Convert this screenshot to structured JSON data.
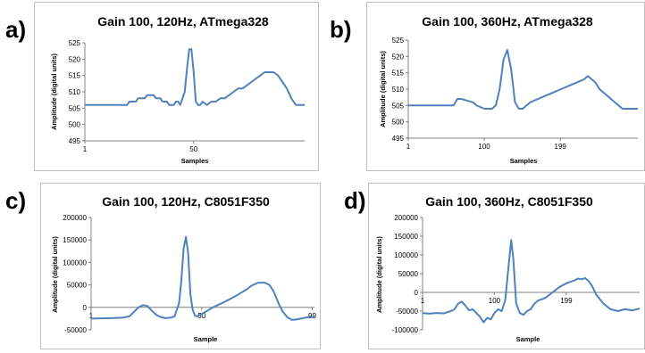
{
  "panels": [
    {
      "letter": "a)",
      "chart_data": {
        "type": "line",
        "title": "Gain 100, 120Hz, ATmega328",
        "xlabel": "Samples",
        "ylabel": "Amplitude (digital units)",
        "xlim": [
          1,
          100
        ],
        "ylim": [
          495,
          525
        ],
        "yticks": [
          495,
          500,
          505,
          510,
          515,
          520,
          525
        ],
        "xtick_labels": [
          {
            "x": 1,
            "label": "1"
          },
          {
            "x": 50,
            "label": "50"
          }
        ],
        "grid": false,
        "series": [
          {
            "color": "#4f81bd",
            "x": [
              1,
              20,
              21,
              24,
              25,
              28,
              29,
              32,
              33,
              35,
              36,
              38,
              39,
              41,
              42,
              43,
              44,
              45,
              46,
              47,
              48,
              49,
              50,
              51,
              52,
              53,
              54,
              56,
              58,
              60,
              62,
              64,
              66,
              68,
              70,
              72,
              74,
              76,
              78,
              80,
              82,
              84,
              86,
              88,
              90,
              92,
              94,
              96,
              98,
              100
            ],
            "y": [
              506,
              506,
              507,
              507,
              508,
              508,
              509,
              509,
              508,
              508,
              507,
              507,
              506,
              506,
              507,
              507,
              506,
              508,
              510,
              517,
              523,
              523,
              516,
              507,
              506,
              506,
              507,
              506,
              507,
              507,
              508,
              508,
              509,
              510,
              511,
              511,
              512,
              513,
              514,
              515,
              516,
              516,
              516,
              515,
              513,
              511,
              508,
              506,
              506,
              506
            ]
          }
        ]
      }
    },
    {
      "letter": "b)",
      "chart_data": {
        "type": "line",
        "title": "Gain 100, 360Hz, ATmega328",
        "xlabel": "Samples",
        "ylabel": "Amplitude (digital units)",
        "xlim": [
          1,
          300
        ],
        "ylim": [
          495,
          525
        ],
        "yticks": [
          495,
          500,
          505,
          510,
          515,
          520,
          525
        ],
        "xtick_labels": [
          {
            "x": 1,
            "label": "1"
          },
          {
            "x": 100,
            "label": "100"
          },
          {
            "x": 199,
            "label": "199"
          }
        ],
        "grid": false,
        "series": [
          {
            "color": "#4f81bd",
            "x": [
              1,
              60,
              65,
              70,
              85,
              90,
              100,
              110,
              115,
              120,
              125,
              130,
              135,
              140,
              145,
              150,
              155,
              160,
              170,
              180,
              190,
              200,
              210,
              220,
              230,
              235,
              240,
              245,
              250,
              260,
              270,
              280,
              290,
              300
            ],
            "y": [
              505,
              505,
              507,
              507,
              506,
              505,
              504,
              504,
              505,
              510,
              519,
              522,
              516,
              506,
              504,
              504,
              505,
              506,
              507,
              508,
              509,
              510,
              511,
              512,
              513,
              514,
              513,
              512,
              510,
              508,
              506,
              504,
              504,
              504
            ]
          }
        ]
      }
    },
    {
      "letter": "c)",
      "chart_data": {
        "type": "line",
        "title": "Gain 100, 120Hz, C8051F350",
        "xlabel": "Sample",
        "ylabel": "Amplitude (digital units)",
        "xlim": [
          1,
          100
        ],
        "ylim": [
          -50000,
          200000
        ],
        "yticks": [
          -50000,
          0,
          50000,
          100000,
          150000,
          200000
        ],
        "xtick_labels": [
          {
            "x": 1,
            "label": "1"
          },
          {
            "x": 50,
            "label": "50"
          },
          {
            "x": 99,
            "label": "99"
          }
        ],
        "grid": false,
        "series": [
          {
            "color": "#4f81bd",
            "x": [
              1,
              10,
              15,
              18,
              20,
              22,
              24,
              26,
              28,
              30,
              32,
              34,
              36,
              38,
              40,
              41,
              42,
              43,
              44,
              45,
              46,
              47,
              48,
              50,
              55,
              60,
              65,
              70,
              72,
              75,
              78,
              80,
              82,
              84,
              86,
              88,
              90,
              92,
              94,
              96,
              98,
              100
            ],
            "y": [
              -25000,
              -24000,
              -23000,
              -20000,
              -10000,
              0,
              5000,
              3000,
              -8000,
              -17000,
              -22000,
              -24000,
              -23000,
              -20000,
              10000,
              60000,
              130000,
              157000,
              120000,
              30000,
              -5000,
              -18000,
              -20000,
              -15000,
              0,
              12000,
              25000,
              40000,
              48000,
              55000,
              55000,
              50000,
              35000,
              10000,
              -10000,
              -22000,
              -28000,
              -27000,
              -25000,
              -23000,
              -21000,
              -23000
            ]
          }
        ]
      }
    },
    {
      "letter": "d)",
      "chart_data": {
        "type": "line",
        "title": "Gain 100, 360Hz, C8051F350",
        "xlabel": "Sample",
        "ylabel": "Amplitude (digital units)",
        "xlim": [
          1,
          300
        ],
        "ylim": [
          -100000,
          200000
        ],
        "yticks": [
          -100000,
          -50000,
          0,
          50000,
          100000,
          150000,
          200000
        ],
        "xtick_labels": [
          {
            "x": 1,
            "label": "1"
          },
          {
            "x": 100,
            "label": "100"
          },
          {
            "x": 199,
            "label": "199"
          }
        ],
        "grid": false,
        "series": [
          {
            "color": "#4f81bd",
            "x": [
              1,
              10,
              20,
              30,
              40,
              45,
              50,
              55,
              60,
              65,
              70,
              75,
              80,
              85,
              90,
              95,
              100,
              105,
              110,
              115,
              120,
              123,
              126,
              130,
              135,
              140,
              145,
              150,
              155,
              160,
              170,
              180,
              190,
              200,
              210,
              215,
              220,
              225,
              230,
              235,
              240,
              250,
              260,
              270,
              280,
              290,
              300
            ],
            "y": [
              -55000,
              -57000,
              -55000,
              -56000,
              -50000,
              -45000,
              -30000,
              -25000,
              -35000,
              -48000,
              -45000,
              -55000,
              -65000,
              -80000,
              -68000,
              -72000,
              -55000,
              -45000,
              -50000,
              -20000,
              80000,
              140000,
              90000,
              -30000,
              -55000,
              -60000,
              -50000,
              -45000,
              -30000,
              -22000,
              -15000,
              0,
              15000,
              25000,
              32000,
              37000,
              35000,
              38000,
              30000,
              15000,
              -5000,
              -30000,
              -45000,
              -50000,
              -45000,
              -48000,
              -43000
            ]
          }
        ]
      }
    }
  ]
}
